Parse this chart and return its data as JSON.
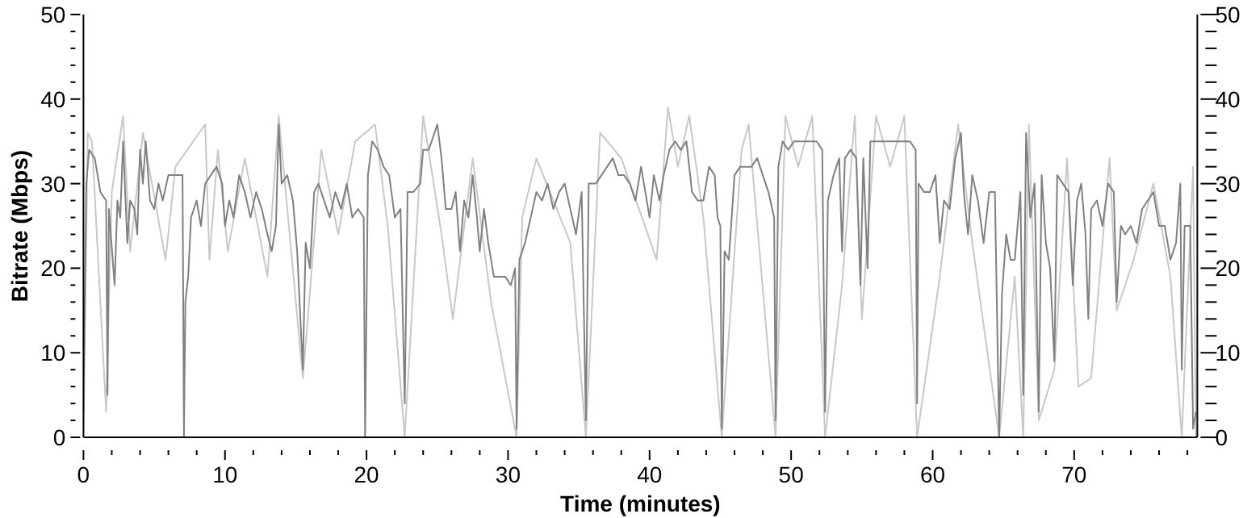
{
  "chart_data": {
    "type": "line",
    "xlabel": "Time (minutes)",
    "ylabel": "Bitrate (Mbps)",
    "xlim": [
      0,
      78.7
    ],
    "xticks": [
      0,
      {
        "value": 2,
        "label": null
      },
      {
        "value": 4,
        "label": null
      },
      {
        "value": 6,
        "label": null
      },
      {
        "value": 8,
        "label": null
      },
      10,
      {
        "value": 12,
        "label": null
      },
      {
        "value": 14,
        "label": null
      },
      {
        "value": 16,
        "label": null
      },
      {
        "value": 18,
        "label": null
      },
      20,
      {
        "value": 22,
        "label": null
      },
      {
        "value": 24,
        "label": null
      },
      {
        "value": 26,
        "label": null
      },
      {
        "value": 28,
        "label": null
      },
      30,
      {
        "value": 32,
        "label": null
      },
      {
        "value": 34,
        "label": null
      },
      {
        "value": 36,
        "label": null
      },
      {
        "value": 38,
        "label": null
      },
      40,
      {
        "value": 42,
        "label": null
      },
      {
        "value": 44,
        "label": null
      },
      {
        "value": 46,
        "label": null
      },
      {
        "value": 48,
        "label": null
      },
      50,
      {
        "value": 52,
        "label": null
      },
      {
        "value": 54,
        "label": null
      },
      {
        "value": 56,
        "label": null
      },
      {
        "value": 58,
        "label": null
      },
      60,
      {
        "value": 62,
        "label": null
      },
      {
        "value": 64,
        "label": null
      },
      {
        "value": 66,
        "label": null
      },
      {
        "value": 68,
        "label": null
      },
      70,
      {
        "value": 72,
        "label": null
      },
      {
        "value": 74,
        "label": null
      },
      {
        "value": 76,
        "label": null
      },
      {
        "value": 78,
        "label": null
      }
    ],
    "ylim": [
      0,
      50
    ],
    "yticks": [
      0,
      {
        "value": 2,
        "label": null
      },
      {
        "value": 4,
        "label": null
      },
      {
        "value": 6,
        "label": null
      },
      {
        "value": 8,
        "label": null
      },
      10,
      {
        "value": 12,
        "label": null
      },
      {
        "value": 14,
        "label": null
      },
      {
        "value": 16,
        "label": null
      },
      {
        "value": 18,
        "label": null
      },
      20,
      {
        "value": 22,
        "label": null
      },
      {
        "value": 24,
        "label": null
      },
      {
        "value": 26,
        "label": null
      },
      {
        "value": 28,
        "label": null
      },
      30,
      {
        "value": 32,
        "label": null
      },
      {
        "value": 34,
        "label": null
      },
      {
        "value": 36,
        "label": null
      },
      {
        "value": 38,
        "label": null
      },
      40,
      {
        "value": 42,
        "label": null
      },
      {
        "value": 44,
        "label": null
      },
      {
        "value": 46,
        "label": null
      },
      {
        "value": 48,
        "label": null
      },
      50
    ],
    "y2lim": [
      0,
      50
    ],
    "y2ticks": [
      0,
      {
        "value": 2,
        "label": null
      },
      {
        "value": 4,
        "label": null
      },
      {
        "value": 6,
        "label": null
      },
      {
        "value": 8,
        "label": null
      },
      10,
      {
        "value": 12,
        "label": null
      },
      {
        "value": 14,
        "label": null
      },
      {
        "value": 16,
        "label": null
      },
      {
        "value": 18,
        "label": null
      },
      20,
      {
        "value": 22,
        "label": null
      },
      {
        "value": 24,
        "label": null
      },
      {
        "value": 26,
        "label": null
      },
      {
        "value": 28,
        "label": null
      },
      30,
      {
        "value": 32,
        "label": null
      },
      {
        "value": 34,
        "label": null
      },
      {
        "value": 36,
        "label": null
      },
      {
        "value": 38,
        "label": null
      },
      40,
      {
        "value": 42,
        "label": null
      },
      {
        "value": 44,
        "label": null
      },
      {
        "value": 46,
        "label": null
      },
      {
        "value": 48,
        "label": null
      },
      50
    ],
    "marker": "none",
    "line_style": "solid",
    "series": [
      {
        "color": "#c8c8c8",
        "x": [
          0,
          0.3,
          0.6,
          1.6,
          2.0,
          2.8,
          3.3,
          4.2,
          5.8,
          6.5,
          8.6,
          8.9,
          9.5,
          10.2,
          11.4,
          13.0,
          13.8,
          15.5,
          15.8,
          16.8,
          18.0,
          19.2,
          20.6,
          21.5,
          22.7,
          24.0,
          25.3,
          26.1,
          27.5,
          28.8,
          30.6,
          31.0,
          32.0,
          34.4,
          35.5,
          36.5,
          38.0,
          40.5,
          41.3,
          42.0,
          42.8,
          43.8,
          45.1,
          46.5,
          47.0,
          48.9,
          49.6,
          50.5,
          51.5,
          52.4,
          53.6,
          54.5,
          55.0,
          56.0,
          57.0,
          58.0,
          58.9,
          60.5,
          61.8,
          62.8,
          64.7,
          65.8,
          66.4,
          66.8,
          67.5,
          68.6,
          69.5,
          70.3,
          71.2,
          72.5,
          73.0,
          74.2,
          75.6,
          76.8,
          77.6,
          78.4,
          78.6
        ],
        "values": [
          0,
          36,
          35,
          3,
          29,
          38,
          22,
          36,
          21,
          32,
          37,
          21,
          34,
          22,
          33,
          19,
          38,
          7,
          13,
          34,
          24,
          35,
          37,
          25,
          0,
          38,
          24,
          14,
          33,
          16,
          0,
          26,
          33,
          23,
          0,
          36,
          33,
          21,
          39,
          32,
          38,
          26,
          0,
          34,
          37,
          0,
          38,
          32,
          38,
          0,
          18,
          38,
          14,
          38,
          32,
          38,
          0,
          19,
          37,
          23,
          0,
          19,
          0,
          37,
          2,
          8,
          33,
          6,
          7,
          33,
          15,
          21,
          30,
          19,
          0,
          32,
          0
        ]
      },
      {
        "color": "#808080",
        "x": [
          0,
          0.2,
          0.4,
          0.8,
          1.2,
          1.6,
          1.7,
          1.8,
          2.2,
          2.4,
          2.6,
          2.8,
          3.1,
          3.3,
          3.6,
          3.8,
          4.0,
          4.2,
          4.4,
          4.7,
          5.0,
          5.3,
          5.6,
          6.0,
          6.5,
          7.0,
          7.1,
          7.2,
          7.4,
          7.6,
          8.0,
          8.3,
          8.6,
          9.0,
          9.4,
          9.8,
          10.0,
          10.3,
          10.6,
          11.0,
          11.4,
          11.8,
          12.2,
          12.6,
          13.0,
          13.3,
          13.6,
          13.8,
          14.0,
          14.4,
          14.8,
          15.1,
          15.3,
          15.5,
          15.7,
          16.0,
          16.3,
          16.6,
          17.0,
          17.4,
          17.8,
          18.2,
          18.6,
          19.0,
          19.4,
          19.8,
          19.9,
          20.1,
          20.4,
          20.8,
          21.2,
          21.6,
          22.0,
          22.4,
          22.7,
          22.9,
          23.3,
          23.8,
          24.0,
          24.4,
          24.8,
          25.0,
          25.3,
          25.6,
          26.0,
          26.3,
          26.6,
          26.9,
          27.2,
          27.5,
          27.8,
          28.0,
          28.3,
          28.6,
          29.0,
          29.4,
          29.8,
          30.2,
          30.5,
          30.6,
          30.8,
          31.2,
          31.6,
          32.0,
          32.4,
          32.8,
          33.2,
          33.6,
          34.0,
          34.4,
          34.8,
          35.2,
          35.5,
          35.7,
          36.2,
          36.6,
          37.0,
          37.4,
          37.8,
          38.2,
          38.6,
          39.0,
          39.4,
          39.7,
          40.0,
          40.3,
          40.7,
          41.0,
          41.4,
          41.8,
          42.2,
          42.6,
          43.0,
          43.4,
          43.8,
          44.2,
          44.6,
          44.8,
          45.0,
          45.1,
          45.3,
          45.6,
          46.0,
          46.4,
          46.8,
          47.2,
          47.6,
          48.0,
          48.4,
          48.8,
          48.9,
          49.1,
          49.4,
          49.8,
          50.2,
          50.6,
          51.0,
          51.4,
          51.8,
          52.2,
          52.4,
          52.6,
          53.0,
          53.4,
          53.6,
          53.8,
          54.2,
          54.6,
          54.9,
          55.1,
          55.4,
          55.6,
          56.0,
          56.4,
          56.8,
          57.2,
          57.6,
          58.0,
          58.4,
          58.8,
          58.9,
          59.0,
          59.4,
          59.8,
          60.2,
          60.5,
          60.8,
          61.2,
          61.6,
          62.0,
          62.2,
          62.5,
          62.8,
          63.2,
          63.6,
          64.0,
          64.4,
          64.7,
          64.9,
          65.2,
          65.5,
          65.8,
          66.2,
          66.4,
          66.6,
          66.9,
          67.2,
          67.5,
          67.7,
          68.0,
          68.3,
          68.6,
          68.8,
          69.2,
          69.6,
          69.9,
          70.2,
          70.5,
          70.8,
          71.0,
          71.2,
          71.6,
          72.0,
          72.4,
          72.8,
          73.0,
          73.3,
          73.6,
          74.0,
          74.4,
          74.8,
          75.2,
          75.6,
          76.0,
          76.4,
          76.8,
          77.2,
          77.5,
          77.6,
          77.8,
          78.2,
          78.4,
          78.6
        ],
        "values": [
          3,
          30,
          34,
          33,
          29,
          28,
          5,
          27,
          18,
          28,
          26,
          35,
          23,
          28,
          27,
          24,
          34,
          30,
          35,
          28,
          27,
          30,
          28,
          31,
          31,
          31,
          0,
          16,
          19,
          26,
          28,
          25,
          30,
          31,
          32,
          30,
          25,
          28,
          26,
          31,
          29,
          26,
          29,
          27,
          24,
          22,
          25,
          37,
          30,
          31,
          28,
          22,
          15,
          8,
          23,
          20,
          29,
          30,
          28,
          26,
          29,
          27,
          30,
          26,
          27,
          26,
          0,
          31,
          35,
          34,
          32,
          31,
          26,
          27,
          4,
          29,
          29,
          30,
          34,
          34,
          36,
          37,
          33,
          27,
          27,
          29,
          22,
          28,
          26,
          31,
          26,
          22,
          27,
          23,
          19,
          19,
          19,
          18,
          20,
          1,
          21,
          23,
          26,
          29,
          28,
          30,
          27,
          29,
          30,
          27,
          24,
          29,
          2,
          30,
          30,
          31,
          32,
          33,
          31,
          31,
          30,
          28,
          32,
          29,
          26,
          31,
          28,
          31,
          34,
          35,
          34,
          35,
          29,
          28,
          28,
          32,
          31,
          26,
          25,
          1,
          22,
          21,
          31,
          32,
          32,
          32,
          33,
          31,
          29,
          26,
          2,
          32,
          35,
          34,
          35,
          35,
          35,
          35,
          35,
          34,
          3,
          28,
          31,
          33,
          22,
          33,
          34,
          33,
          18,
          33,
          20,
          35,
          35,
          35,
          35,
          35,
          35,
          35,
          35,
          34,
          4,
          30,
          29,
          29,
          31,
          23,
          28,
          27,
          33,
          36,
          29,
          24,
          31,
          28,
          23,
          29,
          29,
          0,
          17,
          24,
          21,
          21,
          29,
          5,
          36,
          26,
          30,
          3,
          31,
          23,
          20,
          9,
          31,
          30,
          29,
          18,
          28,
          30,
          24,
          14,
          27,
          28,
          25,
          30,
          29,
          16,
          25,
          24,
          25,
          23,
          27,
          28,
          29,
          25,
          25,
          21,
          23,
          30,
          8,
          25,
          25,
          1,
          3
        ]
      }
    ]
  }
}
